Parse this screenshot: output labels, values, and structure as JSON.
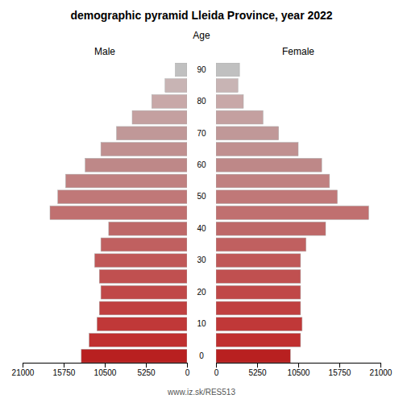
{
  "chart_data": {
    "type": "pyramid",
    "orientation": "horizontal",
    "title": "demographic pyramid Lleida Province, year 2022",
    "ylabel": "Age",
    "annotations": [
      "www.iz.sk/RES513"
    ],
    "categories": [
      "0",
      null,
      "10",
      null,
      "20",
      null,
      "30",
      null,
      "40",
      null,
      "50",
      null,
      "60",
      null,
      "70",
      null,
      "80",
      null,
      "90"
    ],
    "series": [
      {
        "name": "Male",
        "values": [
          13500,
          12500,
          11500,
          11200,
          11000,
          11200,
          11800,
          11000,
          10000,
          17500,
          16500,
          15500,
          13000,
          11000,
          9000,
          7000,
          4500,
          2800,
          1500
        ]
      },
      {
        "name": "Female",
        "values": [
          9500,
          10800,
          11000,
          10800,
          10800,
          10800,
          10800,
          11500,
          14000,
          19500,
          15500,
          14500,
          13500,
          10500,
          8000,
          6000,
          3500,
          2800,
          3000
        ]
      }
    ],
    "colors": [
      "#b82020",
      "#c03030",
      "#c03838",
      "#c04040",
      "#c04848",
      "#c05050",
      "#c05858",
      "#c06060",
      "#be6868",
      "#c07070",
      "#c07878",
      "#c08080",
      "#be8888",
      "#c09090",
      "#c09898",
      "#c4a0a0",
      "#c8a8a8",
      "#c8b4b4",
      "#c0c0c0"
    ],
    "xlim": [
      0,
      21000
    ],
    "xticks": [
      0,
      5250,
      10500,
      15750,
      21000
    ],
    "grid": false
  }
}
